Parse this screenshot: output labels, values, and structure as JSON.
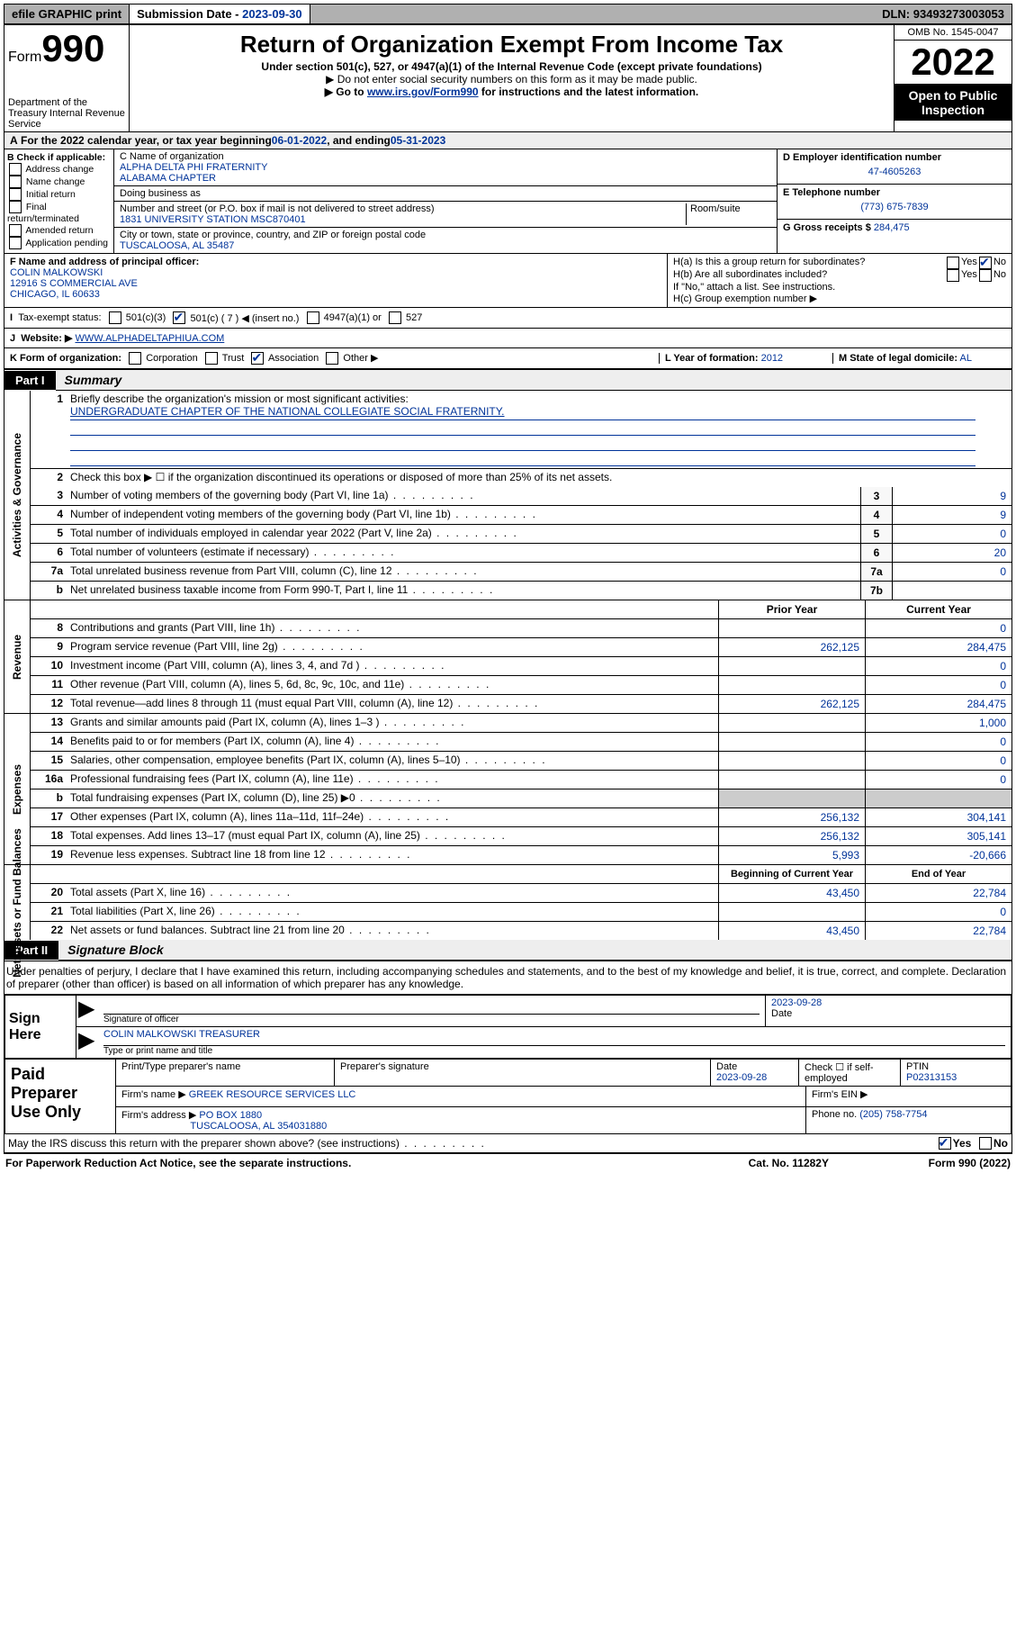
{
  "toolbar": {
    "efile": "efile GRAPHIC print",
    "sub_label": "Submission Date -",
    "sub_date": "2023-09-30",
    "dln_label": "DLN:",
    "dln": "93493273003053"
  },
  "header": {
    "form_prefix": "Form",
    "form_number": "990",
    "dept": "Department of the Treasury\nInternal Revenue Service",
    "title": "Return of Organization Exempt From Income Tax",
    "subtitle": "Under section 501(c), 527, or 4947(a)(1) of the Internal Revenue Code (except private foundations)",
    "note1": "▶ Do not enter social security numbers on this form as it may be made public.",
    "note2_pre": "▶ Go to ",
    "note2_link": "www.irs.gov/Form990",
    "note2_post": " for instructions and the latest information.",
    "omb": "OMB No. 1545-0047",
    "year": "2022",
    "otp": "Open to Public Inspection"
  },
  "line_a": {
    "text_pre": "For the 2022 calendar year, or tax year beginning ",
    "begin": "06-01-2022",
    "mid": " , and ending ",
    "end": "05-31-2023"
  },
  "box_b": {
    "label": "B Check if applicable:",
    "items": [
      "Address change",
      "Name change",
      "Initial return",
      "Final return/terminated",
      "Amended return",
      "Application pending"
    ]
  },
  "box_c": {
    "name_label": "C Name of organization",
    "name": "ALPHA DELTA PHI FRATERNITY\nALABAMA CHAPTER",
    "dba_label": "Doing business as",
    "dba": "",
    "addr_label": "Number and street (or P.O. box if mail is not delivered to street address)",
    "room_label": "Room/suite",
    "addr": "1831 UNIVERSITY STATION MSC870401",
    "city_label": "City or town, state or province, country, and ZIP or foreign postal code",
    "city": "TUSCALOOSA, AL  35487"
  },
  "box_d": {
    "label": "D Employer identification number",
    "value": "47-4605263"
  },
  "box_e": {
    "label": "E Telephone number",
    "value": "(773) 675-7839"
  },
  "box_g": {
    "label": "G Gross receipts $",
    "value": "284,475"
  },
  "box_f": {
    "label": "F Name and address of principal officer:",
    "name": "COLIN MALKOWSKI",
    "addr1": "12916 S COMMERCIAL AVE",
    "addr2": "CHICAGO, IL  60633"
  },
  "box_h": {
    "a_label": "H(a)  Is this a group return for subordinates?",
    "a_yes": "Yes",
    "a_no": "No",
    "b_label": "H(b)  Are all subordinates included?",
    "b_note": "If \"No,\" attach a list. See instructions.",
    "c_label": "H(c)  Group exemption number ▶"
  },
  "row_i": {
    "label": "Tax-exempt status:",
    "opts": [
      "501(c)(3)",
      "501(c) ( 7 ) ◀ (insert no.)",
      "4947(a)(1) or",
      "527"
    ]
  },
  "row_j": {
    "label": "Website: ▶",
    "value": "WWW.ALPHADELTAPHIUA.COM"
  },
  "row_k": {
    "label": "K Form of organization:",
    "opts": [
      "Corporation",
      "Trust",
      "Association",
      "Other ▶"
    ],
    "l_label": "L Year of formation:",
    "l_val": "2012",
    "m_label": "M State of legal domicile:",
    "m_val": "AL"
  },
  "part1": {
    "tag": "Part I",
    "title": "Summary"
  },
  "summary": {
    "governance_tab": "Activities & Governance",
    "revenue_tab": "Revenue",
    "expenses_tab": "Expenses",
    "netassets_tab": "Net Assets or Fund Balances",
    "line1_label": "Briefly describe the organization's mission or most significant activities:",
    "line1_text": "UNDERGRADUATE CHAPTER OF THE NATIONAL COLLEGIATE SOCIAL FRATERNITY.",
    "line2": "Check this box ▶ ☐  if the organization discontinued its operations or disposed of more than 25% of its net assets.",
    "lines_single": [
      {
        "n": "3",
        "label": "Number of voting members of the governing body (Part VI, line 1a)",
        "box": "3",
        "val": "9"
      },
      {
        "n": "4",
        "label": "Number of independent voting members of the governing body (Part VI, line 1b)",
        "box": "4",
        "val": "9"
      },
      {
        "n": "5",
        "label": "Total number of individuals employed in calendar year 2022 (Part V, line 2a)",
        "box": "5",
        "val": "0"
      },
      {
        "n": "6",
        "label": "Total number of volunteers (estimate if necessary)",
        "box": "6",
        "val": "20"
      },
      {
        "n": "7a",
        "label": "Total unrelated business revenue from Part VIII, column (C), line 12",
        "box": "7a",
        "val": "0"
      },
      {
        "n": "b",
        "label": "Net unrelated business taxable income from Form 990-T, Part I, line 11",
        "box": "7b",
        "val": ""
      }
    ],
    "prior_head": "Prior Year",
    "curr_head": "Current Year",
    "revenue_lines": [
      {
        "n": "8",
        "label": "Contributions and grants (Part VIII, line 1h)",
        "prior": "",
        "curr": "0"
      },
      {
        "n": "9",
        "label": "Program service revenue (Part VIII, line 2g)",
        "prior": "262,125",
        "curr": "284,475"
      },
      {
        "n": "10",
        "label": "Investment income (Part VIII, column (A), lines 3, 4, and 7d )",
        "prior": "",
        "curr": "0"
      },
      {
        "n": "11",
        "label": "Other revenue (Part VIII, column (A), lines 5, 6d, 8c, 9c, 10c, and 11e)",
        "prior": "",
        "curr": "0"
      },
      {
        "n": "12",
        "label": "Total revenue—add lines 8 through 11 (must equal Part VIII, column (A), line 12)",
        "prior": "262,125",
        "curr": "284,475"
      }
    ],
    "expense_lines": [
      {
        "n": "13",
        "label": "Grants and similar amounts paid (Part IX, column (A), lines 1–3 )",
        "prior": "",
        "curr": "1,000"
      },
      {
        "n": "14",
        "label": "Benefits paid to or for members (Part IX, column (A), line 4)",
        "prior": "",
        "curr": "0"
      },
      {
        "n": "15",
        "label": "Salaries, other compensation, employee benefits (Part IX, column (A), lines 5–10)",
        "prior": "",
        "curr": "0"
      },
      {
        "n": "16a",
        "label": "Professional fundraising fees (Part IX, column (A), line 11e)",
        "prior": "",
        "curr": "0"
      },
      {
        "n": "b",
        "label": "Total fundraising expenses (Part IX, column (D), line 25) ▶0",
        "prior": "SHADE",
        "curr": "SHADE"
      },
      {
        "n": "17",
        "label": "Other expenses (Part IX, column (A), lines 11a–11d, 11f–24e)",
        "prior": "256,132",
        "curr": "304,141"
      },
      {
        "n": "18",
        "label": "Total expenses. Add lines 13–17 (must equal Part IX, column (A), line 25)",
        "prior": "256,132",
        "curr": "305,141"
      },
      {
        "n": "19",
        "label": "Revenue less expenses. Subtract line 18 from line 12",
        "prior": "5,993",
        "curr": "-20,666"
      }
    ],
    "na_head_prior": "Beginning of Current Year",
    "na_head_curr": "End of Year",
    "na_lines": [
      {
        "n": "20",
        "label": "Total assets (Part X, line 16)",
        "prior": "43,450",
        "curr": "22,784"
      },
      {
        "n": "21",
        "label": "Total liabilities (Part X, line 26)",
        "prior": "",
        "curr": "0"
      },
      {
        "n": "22",
        "label": "Net assets or fund balances. Subtract line 21 from line 20",
        "prior": "43,450",
        "curr": "22,784"
      }
    ]
  },
  "part2": {
    "tag": "Part II",
    "title": "Signature Block"
  },
  "sig": {
    "declaration": "Under penalties of perjury, I declare that I have examined this return, including accompanying schedules and statements, and to the best of my knowledge and belief, it is true, correct, and complete. Declaration of preparer (other than officer) is based on all information of which preparer has any knowledge.",
    "sign_here": "Sign Here",
    "officer_sig_label": "Signature of officer",
    "officer_date": "2023-09-28",
    "date_label": "Date",
    "officer_name": "COLIN MALKOWSKI  TREASURER",
    "officer_name_label": "Type or print name and title"
  },
  "prep": {
    "title": "Paid Preparer Use Only",
    "h_name": "Print/Type preparer's name",
    "h_sig": "Preparer's signature",
    "h_date": "Date",
    "date_val": "2023-09-28",
    "h_check": "Check ☐ if self-employed",
    "h_ptin": "PTIN",
    "ptin_val": "P02313153",
    "firm_name_label": "Firm's name    ▶",
    "firm_name": "GREEK RESOURCE SERVICES LLC",
    "firm_ein_label": "Firm's EIN ▶",
    "firm_addr_label": "Firm's address ▶",
    "firm_addr1": "PO BOX 1880",
    "firm_addr2": "TUSCALOOSA, AL  354031880",
    "phone_label": "Phone no.",
    "phone": "(205) 758-7754"
  },
  "footer": {
    "q": "May the IRS discuss this return with the preparer shown above? (see instructions)",
    "yes": "Yes",
    "no": "No",
    "pra": "For Paperwork Reduction Act Notice, see the separate instructions.",
    "cat": "Cat. No. 11282Y",
    "form": "Form 990 (2022)"
  }
}
